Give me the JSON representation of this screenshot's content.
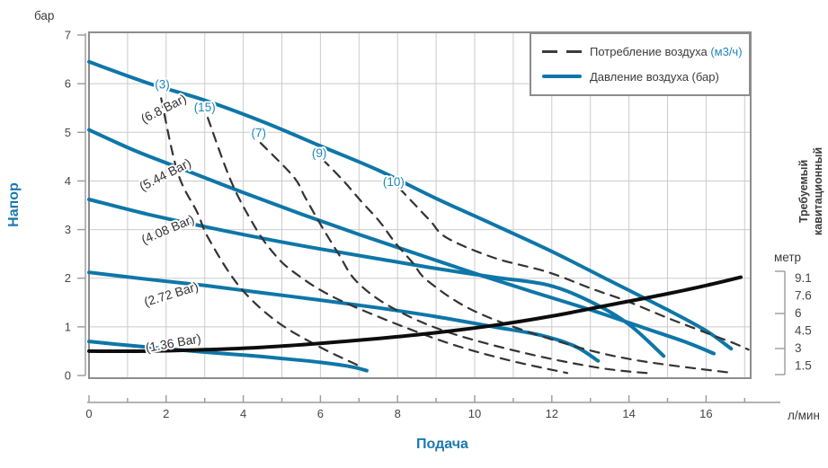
{
  "colors": {
    "pressure_curve": "#0e76a8",
    "air_curve": "#333333",
    "npsh_curve": "#0d0d0d",
    "blue_label": "#1e87bd",
    "dark_label": "#333333",
    "axis_title_blue": "#1a7ab0",
    "grid": "#cbcbcb",
    "border": "#8d8d8d",
    "axis_line": "#9a9a9a",
    "tick_text": "#454545"
  },
  "chart_data": {
    "type": "line",
    "title": "",
    "x_axis": {
      "title": "Подача",
      "unit": "л/мин",
      "min": 0,
      "max": 17.9,
      "labeled_ticks": [
        0,
        2,
        4,
        6,
        8,
        10,
        12,
        14,
        16
      ],
      "minor_ticks": [
        1,
        3,
        5,
        7,
        9,
        11,
        13,
        15,
        17
      ]
    },
    "y_axis": {
      "title": "Напор",
      "unit": "бар",
      "min": 0,
      "max": 7,
      "ticks": [
        0,
        1,
        2,
        3,
        4,
        5,
        6,
        7
      ]
    },
    "right_axis": {
      "title": "Требуемый кавитационный запас",
      "unit": "метр",
      "tick_labels": [
        "9.1",
        "7.6",
        "6",
        "4.5",
        "3",
        "1.5"
      ]
    },
    "legend": {
      "items": [
        {
          "name": "air-consumption",
          "label": "Потребление воздуха ",
          "label_suffix": "(м3/ч)",
          "style": "dashed"
        },
        {
          "name": "air-pressure",
          "label": "Давление воздуха (бар)",
          "label_suffix": "",
          "style": "solid-blue"
        }
      ]
    },
    "series": [
      {
        "name": "pressure-6.8-bar",
        "kind": "pressure",
        "label": "(6.8 Bar)",
        "label_x": 1.42,
        "label_y": 5.18,
        "label_rot": -27,
        "label_color": "dark",
        "label_anchor": "start",
        "points": [
          [
            0,
            6.45
          ],
          [
            1.5,
            6.02
          ],
          [
            3,
            5.66
          ],
          [
            4.5,
            5.22
          ],
          [
            6,
            4.72
          ],
          [
            7.5,
            4.22
          ],
          [
            9,
            3.64
          ],
          [
            10.5,
            3.1
          ],
          [
            12,
            2.55
          ],
          [
            13.5,
            1.95
          ],
          [
            15,
            1.35
          ],
          [
            16,
            0.92
          ],
          [
            16.65,
            0.55
          ]
        ]
      },
      {
        "name": "pressure-5.44-bar",
        "kind": "pressure",
        "label": "(5.44 Bar)",
        "label_x": 1.38,
        "label_y": 3.79,
        "label_rot": -27,
        "label_color": "dark",
        "label_anchor": "start",
        "points": [
          [
            0,
            5.05
          ],
          [
            1.2,
            4.62
          ],
          [
            2.5,
            4.22
          ],
          [
            4,
            3.76
          ],
          [
            5.5,
            3.32
          ],
          [
            7,
            2.9
          ],
          [
            8.5,
            2.5
          ],
          [
            10,
            2.1
          ],
          [
            11.5,
            1.72
          ],
          [
            13,
            1.35
          ],
          [
            14.5,
            0.95
          ],
          [
            15.5,
            0.68
          ],
          [
            16.2,
            0.45
          ]
        ]
      },
      {
        "name": "pressure-4.08-bar",
        "kind": "pressure",
        "label": "(4.08 Bar)",
        "label_x": 1.42,
        "label_y": 2.7,
        "label_rot": -23,
        "label_color": "dark",
        "label_anchor": "start",
        "points": [
          [
            0,
            3.62
          ],
          [
            1.5,
            3.32
          ],
          [
            3,
            3.06
          ],
          [
            4.5,
            2.82
          ],
          [
            6,
            2.6
          ],
          [
            7.5,
            2.4
          ],
          [
            9,
            2.2
          ],
          [
            10.5,
            2.02
          ],
          [
            11.9,
            1.86
          ],
          [
            13,
            1.52
          ],
          [
            14,
            1.05
          ],
          [
            14.9,
            0.4
          ]
        ]
      },
      {
        "name": "pressure-2.72-bar",
        "kind": "pressure",
        "label": "(2.72 Bar)",
        "label_x": 1.47,
        "label_y": 1.42,
        "label_rot": -17,
        "label_color": "dark",
        "label_anchor": "start",
        "points": [
          [
            0,
            2.12
          ],
          [
            1.5,
            1.98
          ],
          [
            3,
            1.85
          ],
          [
            4.5,
            1.7
          ],
          [
            6,
            1.55
          ],
          [
            7.5,
            1.39
          ],
          [
            9,
            1.21
          ],
          [
            10.5,
            1.0
          ],
          [
            11.7,
            0.83
          ],
          [
            12.6,
            0.6
          ],
          [
            13.2,
            0.3
          ]
        ]
      },
      {
        "name": "pressure-1.36-bar",
        "kind": "pressure",
        "label": "(1.36 Bar)",
        "label_x": 1.49,
        "label_y": 0.48,
        "label_rot": -10,
        "label_color": "dark",
        "label_anchor": "start",
        "points": [
          [
            0,
            0.7
          ],
          [
            1,
            0.62
          ],
          [
            2,
            0.55
          ],
          [
            3,
            0.48
          ],
          [
            4,
            0.42
          ],
          [
            5,
            0.35
          ],
          [
            6,
            0.27
          ],
          [
            6.8,
            0.18
          ],
          [
            7.2,
            0.1
          ]
        ]
      },
      {
        "name": "air-3",
        "kind": "air",
        "label": "(3)",
        "label_x": 1.9,
        "label_y": 5.9,
        "label_rot": 0,
        "label_color": "blue",
        "label_anchor": "middle",
        "points": [
          [
            1.87,
            5.7
          ],
          [
            2.3,
            4.17
          ],
          [
            2.81,
            3.35
          ],
          [
            3.09,
            2.83
          ],
          [
            3.86,
            1.87
          ],
          [
            4.8,
            1.15
          ],
          [
            5.9,
            0.62
          ],
          [
            7.0,
            0.2
          ]
        ]
      },
      {
        "name": "air-15",
        "kind": "air",
        "label": "(15)",
        "label_x": 3.0,
        "label_y": 5.43,
        "label_rot": 0,
        "label_color": "blue",
        "label_anchor": "middle",
        "points": [
          [
            3.08,
            5.3
          ],
          [
            3.68,
            4.0
          ],
          [
            4.26,
            3.11
          ],
          [
            4.74,
            2.56
          ],
          [
            5.3,
            2.13
          ],
          [
            6.5,
            1.55
          ],
          [
            8.9,
            0.78
          ],
          [
            10.7,
            0.35
          ],
          [
            12.4,
            0.05
          ]
        ]
      },
      {
        "name": "air-7",
        "kind": "air",
        "label": "(7)",
        "label_x": 4.4,
        "label_y": 4.9,
        "label_rot": 0,
        "label_color": "blue",
        "label_anchor": "middle",
        "points": [
          [
            4.45,
            4.78
          ],
          [
            5.3,
            4.09
          ],
          [
            5.6,
            3.67
          ],
          [
            6.0,
            3.11
          ],
          [
            6.47,
            2.5
          ],
          [
            6.93,
            1.94
          ],
          [
            7.8,
            1.42
          ],
          [
            9.2,
            0.92
          ],
          [
            11.2,
            0.48
          ],
          [
            13.2,
            0.16
          ],
          [
            14.6,
            0.04
          ]
        ]
      },
      {
        "name": "air-9",
        "kind": "air",
        "label": "(9)",
        "label_x": 5.97,
        "label_y": 4.49,
        "label_rot": 0,
        "label_color": "blue",
        "label_anchor": "middle",
        "points": [
          [
            6.05,
            4.45
          ],
          [
            6.6,
            4.0
          ],
          [
            7.07,
            3.57
          ],
          [
            7.53,
            3.17
          ],
          [
            7.93,
            2.74
          ],
          [
            8.4,
            2.31
          ],
          [
            8.79,
            1.94
          ],
          [
            10,
            1.32
          ],
          [
            12,
            0.74
          ],
          [
            14,
            0.34
          ],
          [
            16.7,
            0.05
          ]
        ]
      },
      {
        "name": "air-10",
        "kind": "air",
        "label": "(10)",
        "label_x": 7.9,
        "label_y": 3.9,
        "label_rot": 0,
        "label_color": "blue",
        "label_anchor": "middle",
        "points": [
          [
            8.05,
            3.85
          ],
          [
            8.44,
            3.52
          ],
          [
            8.86,
            3.17
          ],
          [
            9.28,
            2.83
          ],
          [
            10.5,
            2.42
          ],
          [
            11.88,
            2.13
          ],
          [
            13.05,
            1.78
          ],
          [
            13.91,
            1.54
          ],
          [
            14.98,
            1.19
          ],
          [
            15.96,
            0.89
          ],
          [
            16.7,
            0.67
          ],
          [
            17.1,
            0.53
          ]
        ]
      },
      {
        "name": "npsh",
        "kind": "npsh",
        "label": "",
        "label_x": 0,
        "label_y": 0,
        "label_rot": 0,
        "label_color": "dark",
        "label_anchor": "start",
        "points": [
          [
            0,
            0.5
          ],
          [
            1.5,
            0.5
          ],
          [
            3,
            0.53
          ],
          [
            4.5,
            0.58
          ],
          [
            6,
            0.66
          ],
          [
            7.5,
            0.76
          ],
          [
            9,
            0.88
          ],
          [
            10.5,
            1.03
          ],
          [
            12,
            1.22
          ],
          [
            13.5,
            1.45
          ],
          [
            15,
            1.68
          ],
          [
            16,
            1.85
          ],
          [
            16.9,
            2.02
          ]
        ]
      }
    ]
  }
}
